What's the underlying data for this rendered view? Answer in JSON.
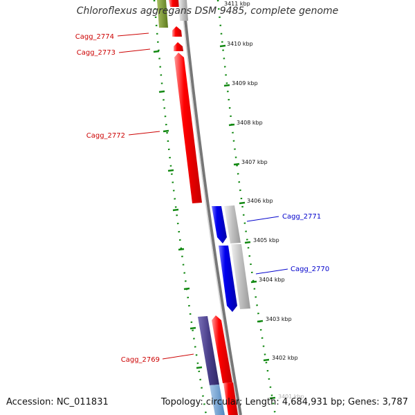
{
  "title": "Chloroflexus aggregans DSM 9485, complete genome",
  "footer": {
    "accession": "Accession: NC_011831",
    "info": "Topology: circular; Length: 4,684,931 bp; Genes: 3,787"
  },
  "colors": {
    "forward_gene": "#ff0000",
    "reverse_gene": "#0000ee",
    "hypothetical": "#bbbbbb",
    "forward_label": "#cc0000",
    "reverse_label": "#0000cc",
    "other_orf": "#4a3f8a",
    "backbone": "#777777",
    "ticks": "#118811"
  },
  "kbp_ticks": [
    "3411 kbp",
    "3410 kbp",
    "3409 kbp",
    "3408 kbp",
    "3407 kbp",
    "3406 kbp",
    "3405 kbp",
    "3404 kbp",
    "3403 kbp",
    "3402 kbp",
    "3401 kbp"
  ],
  "genes": [
    {
      "label": "Cagg_2774",
      "strand": "forward"
    },
    {
      "label": "Cagg_2773",
      "strand": "forward"
    },
    {
      "label": "Cagg_2772",
      "strand": "forward"
    },
    {
      "label": "Cagg_2771",
      "strand": "reverse"
    },
    {
      "label": "Cagg_2770",
      "strand": "reverse"
    },
    {
      "label": "Cagg_2769",
      "strand": "forward"
    }
  ]
}
